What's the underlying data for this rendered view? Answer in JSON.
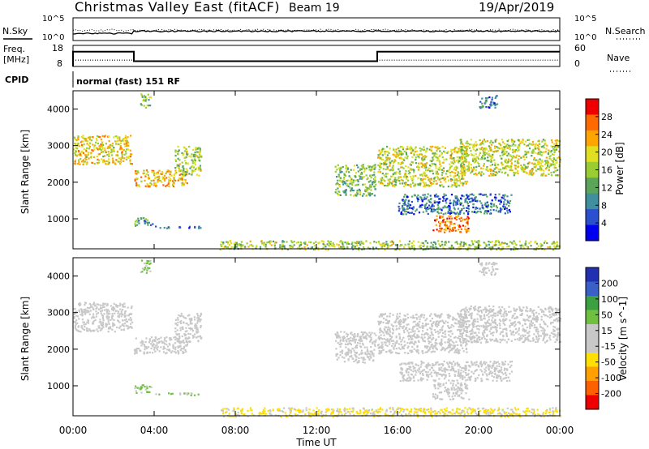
{
  "header": {
    "station": "Christmas Valley East (fitACF)",
    "beam": "Beam 19",
    "date": "19/Apr/2019"
  },
  "colors": {
    "axis": "#000000",
    "scale_power": [
      "#0000ee",
      "#2a4fcf",
      "#3f8f9f",
      "#5aa55a",
      "#9acd32",
      "#e0e020",
      "#ffa500",
      "#ff6a00",
      "#ee0000"
    ],
    "scale_velocity": [
      "#2030b0",
      "#3a60c8",
      "#3aa040",
      "#70c040",
      "#c8c8c8",
      "#c8c8c8",
      "#ffe000",
      "#ffa000",
      "#ff6000",
      "#ee0000"
    ],
    "ground_scatter": "#c8c8c8"
  },
  "chart_data": [
    {
      "type": "line",
      "panel": "noise",
      "left_label": "N.Sky",
      "right_label": "N.Search",
      "left_ticks": [
        "10^5",
        "10^0"
      ],
      "right_ticks": [
        "10^5",
        "10^0"
      ],
      "y_scale": "log"
    },
    {
      "type": "line",
      "panel": "frequency-nave",
      "left_label": "Freq.",
      "left_unit": "[MHz]",
      "left_ticks": [
        "18",
        "8"
      ],
      "left_ylim": [
        8,
        18
      ],
      "right_label": "Nave",
      "right_ticks": [
        "60",
        "0"
      ],
      "right_ylim": [
        0,
        60
      ],
      "freq_series": {
        "x_hours": [
          0,
          0.0,
          3.0,
          3.0,
          15.0,
          15.0,
          24.0
        ],
        "y": [
          8,
          15.0,
          15.0,
          10.5,
          10.5,
          15.0,
          15.0
        ]
      },
      "nave_series": {
        "x_hours": [
          0,
          3.0,
          3.0,
          15.0,
          15.0,
          24.0
        ],
        "y": [
          18,
          18,
          14,
          14,
          18,
          18
        ]
      }
    },
    {
      "type": "table",
      "panel": "cpid",
      "label": "CPID",
      "value": "normal (fast) 151 RF"
    },
    {
      "type": "heatmap",
      "panel": "power",
      "ylabel": "Slant Range [km]",
      "yticks": [
        "1000",
        "2000",
        "3000",
        "4000"
      ],
      "ylim": [
        180,
        4500
      ],
      "xlim_hours": [
        0,
        24
      ],
      "colorbar_title": "Power [dB]",
      "colorbar_ticks": [
        "28",
        "24",
        "20",
        "16",
        "12",
        "8",
        "4"
      ],
      "colorbar_range": [
        0,
        32
      ],
      "scatter_regions": [
        {
          "t0": 0.0,
          "t1": 2.9,
          "r0": 2500,
          "r1": 3300,
          "v": 20
        },
        {
          "t0": 3.0,
          "t1": 5.6,
          "r0": 1900,
          "r1": 2350,
          "v": 22
        },
        {
          "t0": 5.0,
          "t1": 6.3,
          "r0": 2200,
          "r1": 3000,
          "v": 16
        },
        {
          "t0": 3.0,
          "t1": 3.9,
          "r0": 820,
          "r1": 1050,
          "v": 12
        },
        {
          "t0": 4.0,
          "t1": 6.3,
          "r0": 760,
          "r1": 820,
          "v": 6
        },
        {
          "t0": 3.3,
          "t1": 3.8,
          "r0": 4050,
          "r1": 4450,
          "v": 14
        },
        {
          "t0": 12.9,
          "t1": 14.9,
          "r0": 1650,
          "r1": 2500,
          "v": 14
        },
        {
          "t0": 15.0,
          "t1": 19.4,
          "r0": 1900,
          "r1": 3000,
          "v": 18
        },
        {
          "t0": 16.0,
          "t1": 21.6,
          "r0": 1150,
          "r1": 1700,
          "v": 8
        },
        {
          "t0": 17.7,
          "t1": 19.5,
          "r0": 650,
          "r1": 1100,
          "v": 26
        },
        {
          "t0": 19.0,
          "t1": 24.0,
          "r0": 2200,
          "r1": 3200,
          "v": 18
        },
        {
          "t0": 7.2,
          "t1": 24.0,
          "r0": 180,
          "r1": 420,
          "v": 16
        },
        {
          "t0": 20.0,
          "t1": 20.9,
          "r0": 4050,
          "r1": 4400,
          "v": 8
        }
      ]
    },
    {
      "type": "heatmap",
      "panel": "velocity",
      "ylabel": "Slant Range [km]",
      "yticks": [
        "1000",
        "2000",
        "3000",
        "4000"
      ],
      "ylim": [
        180,
        4500
      ],
      "xlim_hours": [
        0,
        24
      ],
      "xlabel": "Time UT",
      "xticks": [
        "00:00",
        "04:00",
        "08:00",
        "12:00",
        "16:00",
        "20:00",
        "00:00"
      ],
      "colorbar_title": "Velocity [m s^-1]",
      "colorbar_ticks": [
        "200",
        "100",
        "50",
        "15",
        "-15",
        "-50",
        "-100",
        "-200"
      ],
      "colorbar_range": [
        -250,
        250
      ],
      "scatter_regions": [
        {
          "t0": 0.0,
          "t1": 2.9,
          "r0": 2500,
          "r1": 3300,
          "v": 0
        },
        {
          "t0": 3.0,
          "t1": 5.6,
          "r0": 1900,
          "r1": 2350,
          "v": 10
        },
        {
          "t0": 5.0,
          "t1": 6.3,
          "r0": 2200,
          "r1": 3000,
          "v": 0
        },
        {
          "t0": 3.0,
          "t1": 3.9,
          "r0": 820,
          "r1": 1050,
          "v": 60
        },
        {
          "t0": 4.0,
          "t1": 6.3,
          "r0": 760,
          "r1": 820,
          "v": 40
        },
        {
          "t0": 3.3,
          "t1": 3.8,
          "r0": 4050,
          "r1": 4450,
          "v": 60
        },
        {
          "t0": 12.9,
          "t1": 14.9,
          "r0": 1650,
          "r1": 2500,
          "v": 0
        },
        {
          "t0": 15.0,
          "t1": 19.4,
          "r0": 1900,
          "r1": 3000,
          "v": 0
        },
        {
          "t0": 16.0,
          "t1": 21.6,
          "r0": 1150,
          "r1": 1700,
          "v": 0
        },
        {
          "t0": 17.7,
          "t1": 19.5,
          "r0": 650,
          "r1": 1100,
          "v": 0
        },
        {
          "t0": 19.0,
          "t1": 24.0,
          "r0": 2200,
          "r1": 3200,
          "v": 0
        },
        {
          "t0": 7.2,
          "t1": 24.0,
          "r0": 180,
          "r1": 420,
          "v": -60
        },
        {
          "t0": 20.0,
          "t1": 20.9,
          "r0": 4050,
          "r1": 4400,
          "v": 0
        }
      ]
    }
  ]
}
